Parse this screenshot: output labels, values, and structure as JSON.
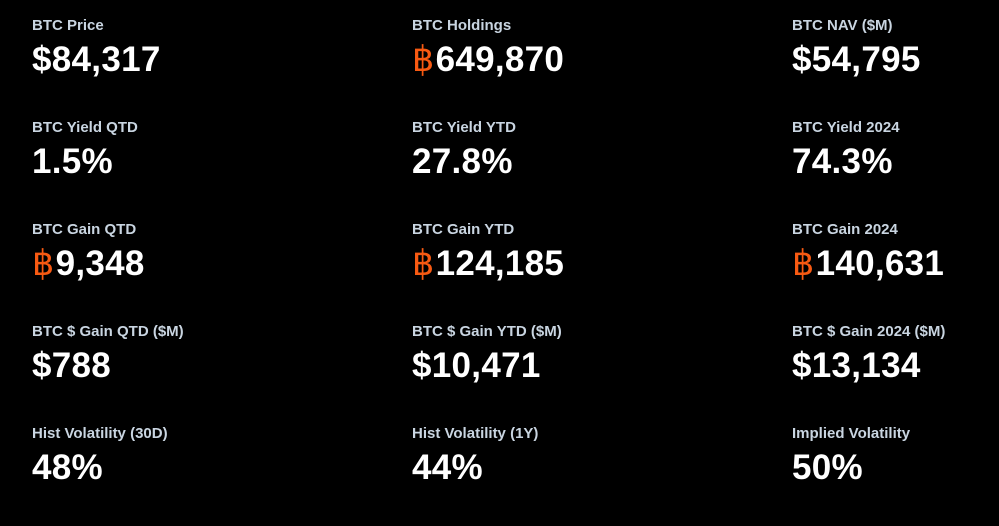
{
  "colors": {
    "background": "#000000",
    "label": "#c9d5e1",
    "value": "#ffffff",
    "btc_symbol": "#f85a12"
  },
  "btc_symbol": "฿",
  "stats": [
    {
      "label": "BTC Price",
      "value": "$84,317",
      "btc": false
    },
    {
      "label": "BTC Holdings",
      "value": "649,870",
      "btc": true
    },
    {
      "label": "BTC NAV ($M)",
      "value": "$54,795",
      "btc": false
    },
    {
      "label": "BTC Yield QTD",
      "value": "1.5%",
      "btc": false
    },
    {
      "label": "BTC Yield YTD",
      "value": "27.8%",
      "btc": false
    },
    {
      "label": "BTC Yield 2024",
      "value": "74.3%",
      "btc": false
    },
    {
      "label": "BTC Gain QTD",
      "value": "9,348",
      "btc": true
    },
    {
      "label": "BTC Gain YTD",
      "value": "124,185",
      "btc": true
    },
    {
      "label": "BTC Gain 2024",
      "value": "140,631",
      "btc": true
    },
    {
      "label": "BTC $ Gain QTD ($M)",
      "value": "$788",
      "btc": false
    },
    {
      "label": "BTC $ Gain YTD ($M)",
      "value": "$10,471",
      "btc": false
    },
    {
      "label": "BTC $ Gain 2024 ($M)",
      "value": "$13,134",
      "btc": false
    },
    {
      "label": "Hist Volatility (30D)",
      "value": "48%",
      "btc": false
    },
    {
      "label": "Hist Volatility (1Y)",
      "value": "44%",
      "btc": false
    },
    {
      "label": "Implied Volatility",
      "value": "50%",
      "btc": false
    }
  ]
}
